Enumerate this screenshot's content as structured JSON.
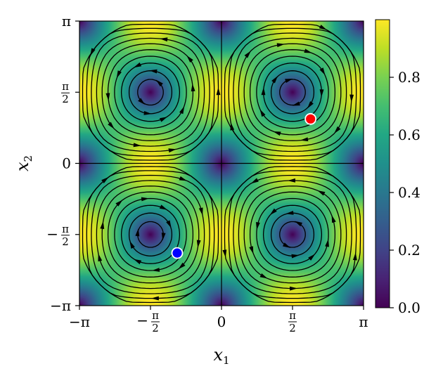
{
  "chart_data": {
    "type": "heatmap",
    "subtype": "streamplot over speed field",
    "xlabel": "x_1",
    "ylabel": "x_2",
    "xlim": [
      -3.14159,
      3.14159
    ],
    "ylim": [
      -3.14159,
      3.14159
    ],
    "x_ticks": [
      {
        "value": -3.14159,
        "label": "−π"
      },
      {
        "value": -1.5708,
        "label": "−π/2"
      },
      {
        "value": 0,
        "label": "0"
      },
      {
        "value": 1.5708,
        "label": "π/2"
      },
      {
        "value": 3.14159,
        "label": "π"
      }
    ],
    "y_ticks": [
      {
        "value": -3.14159,
        "label": "−π"
      },
      {
        "value": -1.5708,
        "label": "−π/2"
      },
      {
        "value": 0,
        "label": "0"
      },
      {
        "value": 1.5708,
        "label": "π/2"
      },
      {
        "value": 3.14159,
        "label": "π"
      }
    ],
    "field": "|(sin x1 cos x2, cos x1 sin x2)|",
    "vortex_centers": [
      {
        "x": -1.5708,
        "y": 1.5708,
        "rotation": "ccw"
      },
      {
        "x": 1.5708,
        "y": 1.5708,
        "rotation": "cw"
      },
      {
        "x": -1.5708,
        "y": -1.5708,
        "rotation": "cw"
      },
      {
        "x": 1.5708,
        "y": -1.5708,
        "rotation": "ccw"
      }
    ],
    "markers": [
      {
        "x": 1.97,
        "y": 0.98,
        "color": "#ff0000"
      },
      {
        "x": -0.98,
        "y": -1.98,
        "color": "#0000ff"
      }
    ],
    "colorbar": {
      "colormap": "viridis",
      "range": [
        0.0,
        1.0
      ],
      "ticks": [
        {
          "value": 0.0,
          "label": "0.0"
        },
        {
          "value": 0.2,
          "label": "0.2"
        },
        {
          "value": 0.4,
          "label": "0.4"
        },
        {
          "value": 0.6,
          "label": "0.6"
        },
        {
          "value": 0.8,
          "label": "0.8"
        }
      ]
    },
    "grid": false,
    "legend": "none"
  }
}
